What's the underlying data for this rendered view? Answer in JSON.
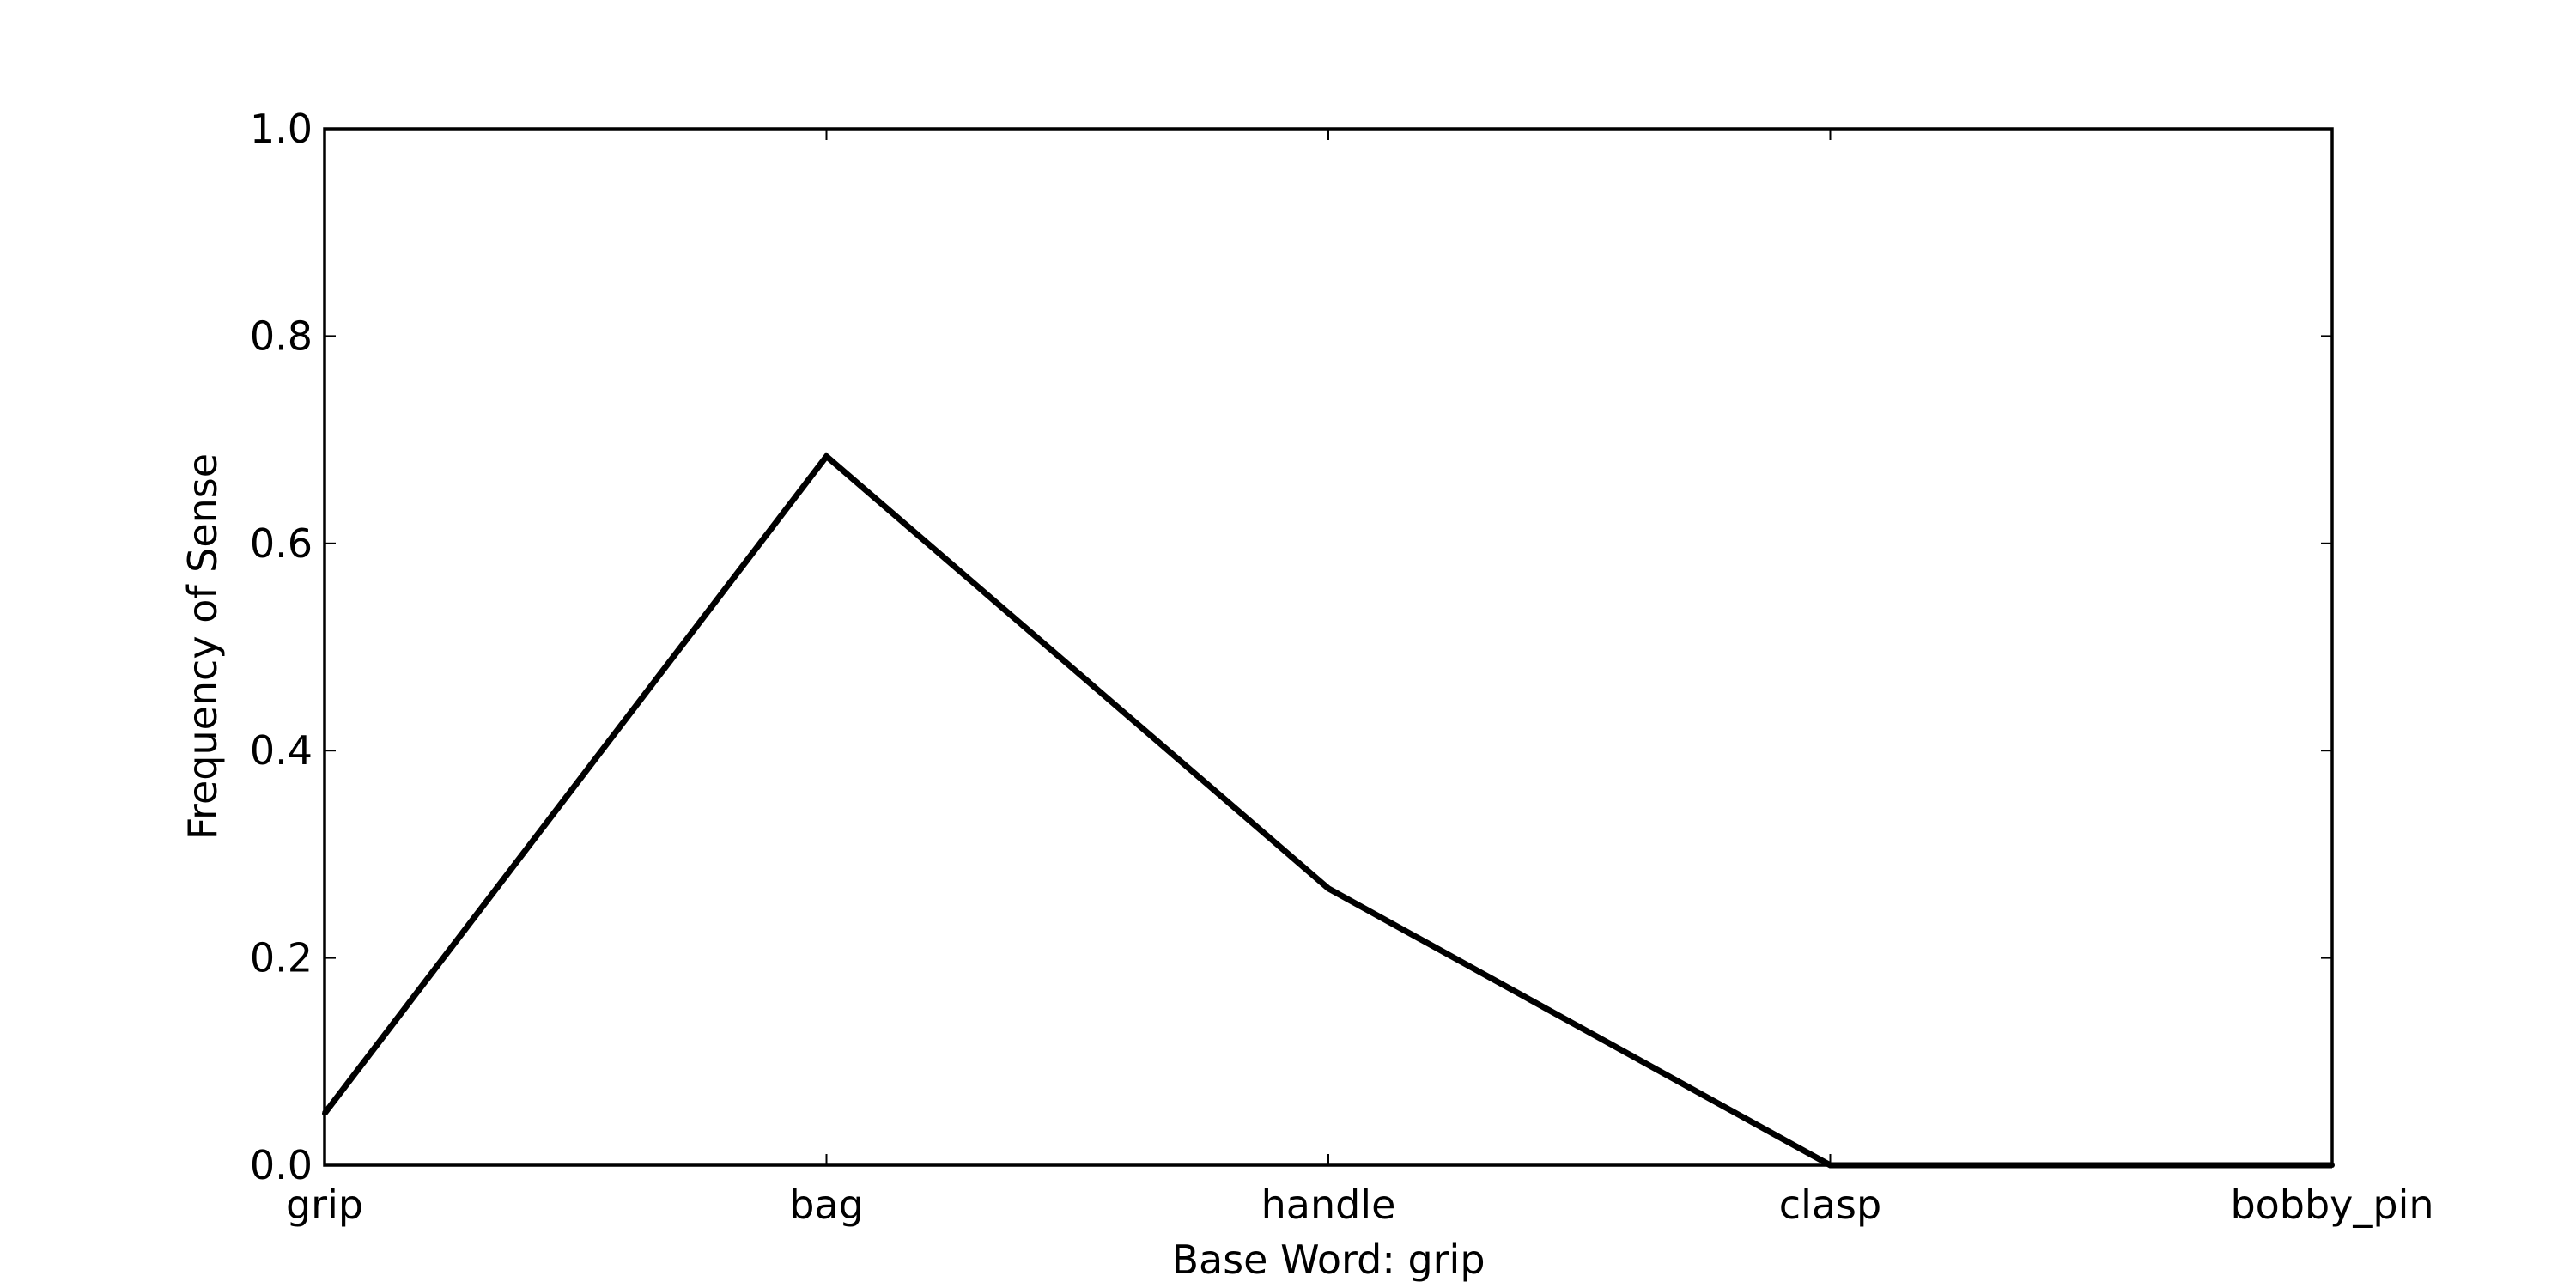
{
  "chart_data": {
    "type": "line",
    "title": "",
    "xlabel": "Base Word: grip",
    "ylabel": "Frequency of Sense",
    "categories": [
      "grip",
      "bag",
      "handle",
      "clasp",
      "bobby_pin"
    ],
    "series": [
      {
        "values": [
          0.05,
          0.684,
          0.267,
          0.0,
          0.0
        ]
      }
    ],
    "ylim": [
      0,
      1.0
    ],
    "yticks": [
      "0.0",
      "0.2",
      "0.4",
      "0.6",
      "0.8",
      "1.0"
    ],
    "grid": false,
    "legend": "none",
    "line_color": "#000000"
  }
}
